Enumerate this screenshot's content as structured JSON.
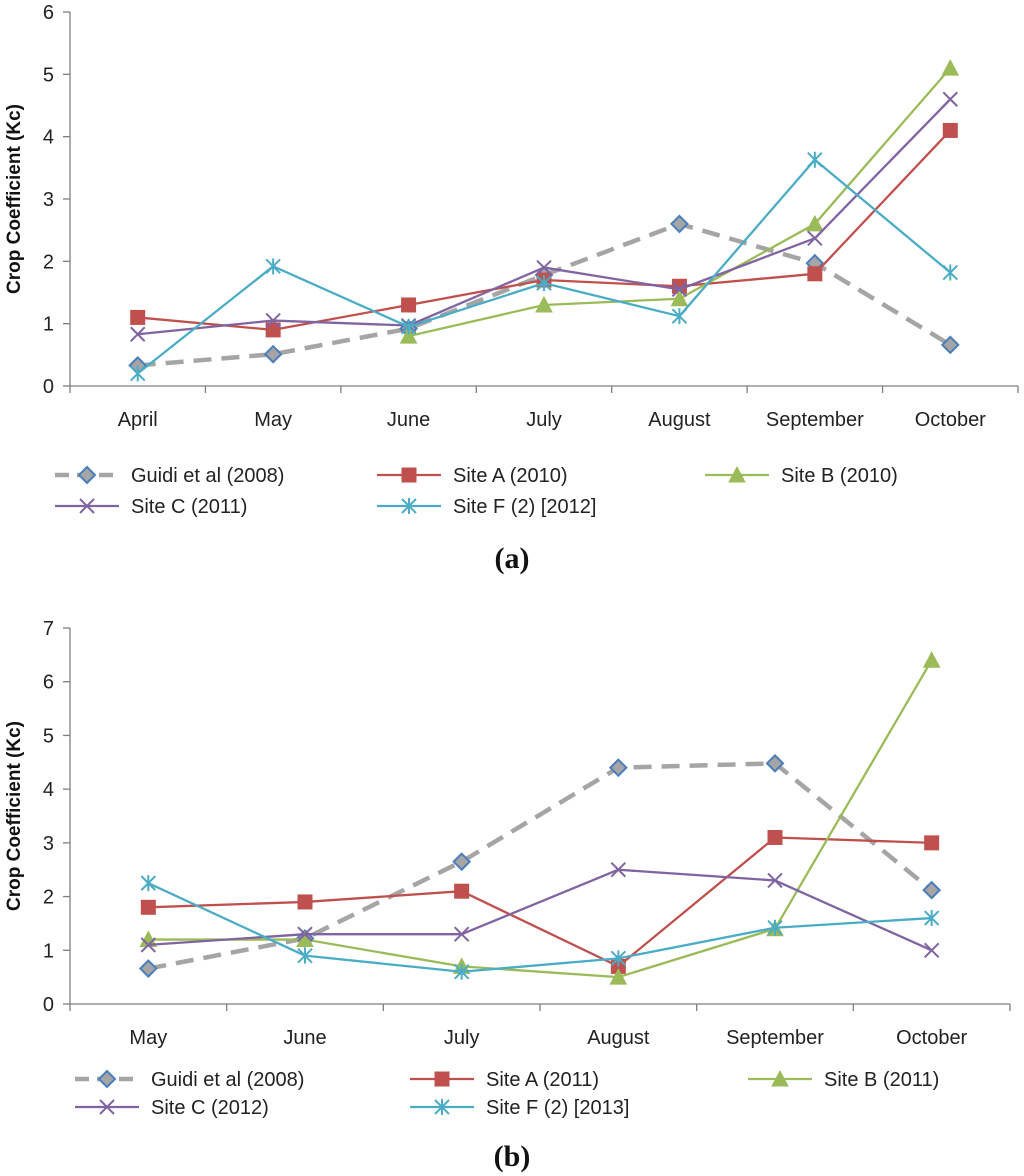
{
  "colors": {
    "guidi": "#a5a5a5",
    "guidi_marker_a": "#4a7ebb",
    "siteA": "#c0504d",
    "siteB": "#9bbb59",
    "siteC": "#8064a2",
    "siteF": "#4bacc6",
    "axis": "#7f7f7f"
  },
  "chart_data": [
    {
      "type": "line",
      "panel_label": "(a)",
      "ylabel": "Crop Coefficient (Kc)",
      "xlabel": "",
      "ylim": [
        0,
        6
      ],
      "yticks": [
        "0",
        "1",
        "2",
        "3",
        "4",
        "5",
        "6"
      ],
      "categories": [
        "April",
        "May",
        "June",
        "July",
        "August",
        "September",
        "October"
      ],
      "series": [
        {
          "name": "Guidi et al (2008)",
          "marker": "diamond",
          "dashed": true,
          "values": [
            0.33,
            0.51,
            0.92,
            1.78,
            2.6,
            1.97,
            0.66
          ]
        },
        {
          "name": "Site A (2010)",
          "marker": "square",
          "dashed": false,
          "values": [
            1.1,
            0.9,
            1.3,
            1.7,
            1.6,
            1.8,
            4.1
          ]
        },
        {
          "name": "Site B (2010)",
          "marker": "triangle",
          "dashed": false,
          "values": [
            null,
            null,
            0.8,
            1.3,
            1.4,
            2.6,
            5.1
          ]
        },
        {
          "name": "Site C (2011)",
          "marker": "x",
          "dashed": false,
          "values": [
            0.83,
            1.05,
            0.97,
            1.9,
            1.55,
            2.37,
            4.6
          ]
        },
        {
          "name": "Site F (2) [2012]",
          "marker": "star",
          "dashed": false,
          "values": [
            0.2,
            1.92,
            0.95,
            1.65,
            1.12,
            3.63,
            1.82
          ]
        }
      ],
      "legend": "bottom"
    },
    {
      "type": "line",
      "panel_label": "(b)",
      "ylabel": "Crop Coefficient (Kc)",
      "xlabel": "",
      "ylim": [
        0,
        7
      ],
      "yticks": [
        "0",
        "1",
        "2",
        "3",
        "4",
        "5",
        "6",
        "7"
      ],
      "categories": [
        "May",
        "June",
        "July",
        "August",
        "September",
        "October"
      ],
      "series": [
        {
          "name": "Guidi et al (2008)",
          "marker": "diamond",
          "dashed": true,
          "values": [
            0.66,
            1.22,
            2.65,
            4.4,
            4.48,
            2.12
          ]
        },
        {
          "name": "Site A (2011)",
          "marker": "square",
          "dashed": false,
          "values": [
            1.8,
            1.9,
            2.1,
            0.7,
            3.1,
            3.0
          ]
        },
        {
          "name": "Site B (2011)",
          "marker": "triangle",
          "dashed": false,
          "values": [
            1.2,
            1.2,
            0.7,
            0.5,
            1.4,
            6.4
          ]
        },
        {
          "name": "Site C (2012)",
          "marker": "x",
          "dashed": false,
          "values": [
            1.1,
            1.3,
            1.3,
            2.5,
            2.3,
            1.0
          ]
        },
        {
          "name": "Site F (2) [2013]",
          "marker": "star",
          "dashed": false,
          "values": [
            2.25,
            0.9,
            0.6,
            0.85,
            1.42,
            1.6
          ]
        }
      ],
      "legend": "bottom"
    }
  ]
}
